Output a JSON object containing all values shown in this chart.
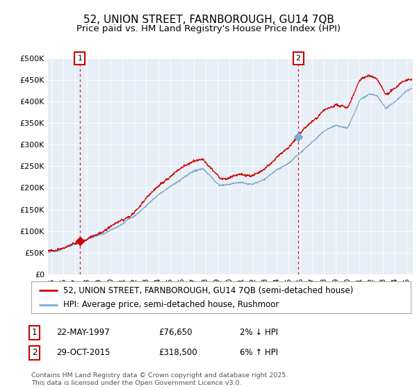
{
  "title": "52, UNION STREET, FARNBOROUGH, GU14 7QB",
  "subtitle": "Price paid vs. HM Land Registry's House Price Index (HPI)",
  "ylim": [
    0,
    500000
  ],
  "yticks": [
    0,
    50000,
    100000,
    150000,
    200000,
    250000,
    300000,
    350000,
    400000,
    450000,
    500000
  ],
  "ytick_labels": [
    "£0",
    "£50K",
    "£100K",
    "£150K",
    "£200K",
    "£250K",
    "£300K",
    "£350K",
    "£400K",
    "£450K",
    "£500K"
  ],
  "xlim_start": 1994.7,
  "xlim_end": 2025.5,
  "background_color": "#e8eef5",
  "plot_bg_color": "#e8eef5",
  "line1_color": "#cc0000",
  "line2_color": "#7aabcf",
  "sale1_date": 1997.389,
  "sale1_price": 76650,
  "sale2_date": 2015.831,
  "sale2_price": 318500,
  "legend_label1": "52, UNION STREET, FARNBOROUGH, GU14 7QB (semi-detached house)",
  "legend_label2": "HPI: Average price, semi-detached house, Rushmoor",
  "annotation1_label": "1",
  "annotation1_date": "22-MAY-1997",
  "annotation1_price": "£76,650",
  "annotation1_hpi": "2% ↓ HPI",
  "annotation2_label": "2",
  "annotation2_date": "29-OCT-2015",
  "annotation2_price": "£318,500",
  "annotation2_hpi": "6% ↑ HPI",
  "footer": "Contains HM Land Registry data © Crown copyright and database right 2025.\nThis data is licensed under the Open Government Licence v3.0.",
  "title_fontsize": 11,
  "subtitle_fontsize": 9.5,
  "tick_fontsize": 8,
  "legend_fontsize": 8.5
}
